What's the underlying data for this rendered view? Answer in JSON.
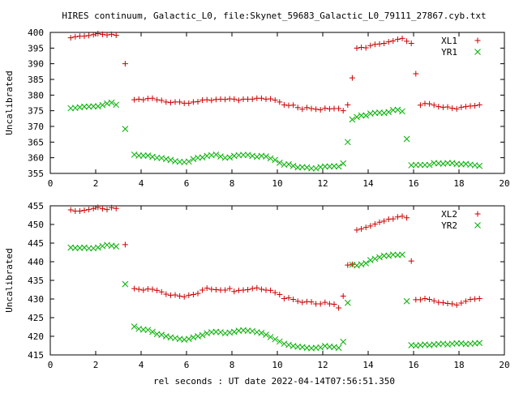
{
  "title": "HIRES continuum, Galactic_L0, file:Skynet_59683_Galactic_L0_79111_27867.cyb.txt",
  "xlabel": "rel seconds : UT date 2022-04-14T07:56:51.350",
  "colors": {
    "series_1": "#cc0000",
    "series_2": "#00b000"
  },
  "chart_data": [
    {
      "type": "scatter",
      "ylabel": "Uncalibrated",
      "xlim": [
        0,
        20
      ],
      "ylim": [
        355,
        400
      ],
      "xticks": [
        0,
        2,
        4,
        6,
        8,
        10,
        12,
        14,
        16,
        18,
        20
      ],
      "yticks": [
        355,
        360,
        365,
        370,
        375,
        380,
        385,
        390,
        395,
        400
      ],
      "legend_position": "top-right",
      "series": [
        {
          "name": "XL1",
          "marker": "plus",
          "x": [
            0.9,
            1.1,
            1.3,
            1.5,
            1.7,
            1.9,
            2.1,
            2.3,
            2.5,
            2.7,
            2.9,
            3.3,
            3.7,
            3.9,
            4.1,
            4.3,
            4.5,
            4.7,
            4.9,
            5.1,
            5.3,
            5.5,
            5.7,
            5.9,
            6.1,
            6.3,
            6.5,
            6.7,
            6.9,
            7.1,
            7.3,
            7.5,
            7.7,
            7.9,
            8.1,
            8.3,
            8.5,
            8.7,
            8.9,
            9.1,
            9.3,
            9.5,
            9.7,
            9.9,
            10.1,
            10.3,
            10.5,
            10.7,
            10.9,
            11.1,
            11.3,
            11.5,
            11.7,
            11.9,
            12.1,
            12.3,
            12.5,
            12.7,
            12.9,
            13.1,
            13.3,
            13.5,
            13.7,
            13.9,
            14.1,
            14.3,
            14.5,
            14.7,
            14.9,
            15.1,
            15.3,
            15.5,
            15.7,
            15.9,
            16.1,
            16.3,
            16.5,
            16.7,
            16.9,
            17.1,
            17.3,
            17.5,
            17.7,
            17.9,
            18.1,
            18.3,
            18.5,
            18.7,
            18.9
          ],
          "y": [
            398.3,
            398.6,
            398.8,
            398.8,
            399.0,
            399.3,
            399.6,
            399.4,
            399.2,
            399.4,
            399.1,
            390.0,
            378.5,
            378.7,
            378.5,
            378.9,
            379.0,
            378.5,
            378.3,
            377.8,
            377.6,
            377.8,
            377.8,
            377.4,
            377.4,
            377.8,
            377.9,
            378.4,
            378.5,
            378.3,
            378.6,
            378.7,
            378.6,
            378.8,
            378.7,
            378.3,
            378.7,
            378.7,
            378.7,
            379.0,
            379.0,
            378.7,
            378.8,
            378.4,
            377.8,
            376.9,
            376.7,
            376.8,
            376.0,
            375.5,
            376.0,
            375.7,
            375.5,
            375.3,
            375.8,
            375.6,
            375.7,
            375.7,
            375.0,
            376.9,
            385.5,
            395.0,
            395.2,
            395.1,
            395.8,
            396.2,
            396.3,
            396.5,
            397.0,
            397.3,
            397.8,
            398.1,
            397.2,
            396.5,
            386.8,
            376.8,
            377.3,
            377.2,
            376.8,
            376.3,
            376.1,
            376.2,
            375.8,
            375.6,
            376.1,
            376.3,
            376.5,
            376.6,
            376.9
          ]
        },
        {
          "name": "YR1",
          "marker": "cross",
          "x": [
            0.9,
            1.1,
            1.3,
            1.5,
            1.7,
            1.9,
            2.1,
            2.3,
            2.5,
            2.7,
            2.9,
            3.3,
            3.7,
            3.9,
            4.1,
            4.3,
            4.5,
            4.7,
            4.9,
            5.1,
            5.3,
            5.5,
            5.7,
            5.9,
            6.1,
            6.3,
            6.5,
            6.7,
            6.9,
            7.1,
            7.3,
            7.5,
            7.7,
            7.9,
            8.1,
            8.3,
            8.5,
            8.7,
            8.9,
            9.1,
            9.3,
            9.5,
            9.7,
            9.9,
            10.1,
            10.3,
            10.5,
            10.7,
            10.9,
            11.1,
            11.3,
            11.5,
            11.7,
            11.9,
            12.1,
            12.3,
            12.5,
            12.7,
            12.9,
            13.1,
            13.3,
            13.5,
            13.7,
            13.9,
            14.1,
            14.3,
            14.5,
            14.7,
            14.9,
            15.1,
            15.3,
            15.5,
            15.7,
            15.9,
            16.1,
            16.3,
            16.5,
            16.7,
            16.9,
            17.1,
            17.3,
            17.5,
            17.7,
            17.9,
            18.1,
            18.3,
            18.5,
            18.7,
            18.9
          ],
          "y": [
            375.8,
            375.9,
            376.1,
            376.3,
            376.3,
            376.4,
            376.4,
            376.8,
            377.3,
            377.6,
            376.9,
            369.2,
            361.0,
            360.7,
            360.7,
            360.7,
            360.3,
            360.0,
            359.9,
            359.6,
            359.3,
            358.9,
            358.7,
            358.6,
            358.8,
            359.6,
            360.0,
            360.1,
            360.6,
            360.8,
            361.0,
            360.4,
            360.0,
            360.1,
            360.6,
            360.8,
            360.9,
            360.9,
            360.6,
            360.3,
            360.6,
            360.4,
            359.8,
            359.3,
            358.4,
            357.8,
            357.9,
            357.4,
            356.9,
            357.0,
            356.9,
            356.6,
            356.6,
            357.0,
            357.2,
            357.2,
            357.3,
            357.2,
            358.2,
            365.0,
            372.2,
            373.0,
            373.5,
            373.5,
            374.1,
            374.3,
            374.4,
            374.3,
            374.6,
            375.2,
            375.3,
            374.8,
            366.0,
            357.6,
            357.7,
            357.7,
            357.7,
            357.7,
            358.3,
            358.2,
            358.1,
            358.3,
            358.3,
            358.0,
            357.9,
            358.0,
            357.8,
            357.6,
            357.4
          ]
        }
      ]
    },
    {
      "type": "scatter",
      "ylabel": "Uncalibrated",
      "xlim": [
        0,
        20
      ],
      "ylim": [
        415,
        455
      ],
      "xticks": [
        0,
        2,
        4,
        6,
        8,
        10,
        12,
        14,
        16,
        18,
        20
      ],
      "yticks": [
        415,
        420,
        425,
        430,
        435,
        440,
        445,
        450,
        455
      ],
      "legend_position": "top-right",
      "series": [
        {
          "name": "XL2",
          "marker": "plus",
          "x": [
            0.9,
            1.1,
            1.3,
            1.5,
            1.7,
            1.9,
            2.1,
            2.3,
            2.5,
            2.7,
            2.9,
            3.3,
            3.7,
            3.9,
            4.1,
            4.3,
            4.5,
            4.7,
            4.9,
            5.1,
            5.3,
            5.5,
            5.7,
            5.9,
            6.1,
            6.3,
            6.5,
            6.7,
            6.9,
            7.1,
            7.3,
            7.5,
            7.7,
            7.9,
            8.1,
            8.3,
            8.5,
            8.7,
            8.9,
            9.1,
            9.3,
            9.5,
            9.7,
            9.9,
            10.1,
            10.3,
            10.5,
            10.7,
            10.9,
            11.1,
            11.3,
            11.5,
            11.7,
            11.9,
            12.1,
            12.3,
            12.5,
            12.7,
            12.9,
            13.1,
            13.3,
            13.5,
            13.7,
            13.9,
            14.1,
            14.3,
            14.5,
            14.7,
            14.9,
            15.1,
            15.3,
            15.5,
            15.7,
            15.9,
            16.1,
            16.3,
            16.5,
            16.7,
            16.9,
            17.1,
            17.3,
            17.5,
            17.7,
            17.9,
            18.1,
            18.3,
            18.5,
            18.7,
            18.9
          ],
          "y": [
            453.9,
            453.6,
            453.6,
            453.8,
            454.0,
            454.3,
            454.6,
            454.2,
            454.0,
            454.5,
            454.3,
            444.6,
            432.8,
            432.6,
            432.4,
            432.7,
            432.6,
            432.3,
            431.9,
            431.3,
            431.0,
            431.1,
            430.8,
            430.6,
            431.0,
            431.2,
            431.5,
            432.4,
            432.9,
            432.6,
            432.5,
            432.4,
            432.4,
            432.8,
            432.0,
            432.3,
            432.4,
            432.5,
            432.8,
            433.0,
            432.6,
            432.4,
            432.3,
            431.7,
            431.2,
            430.1,
            430.3,
            429.9,
            429.4,
            429.1,
            429.3,
            429.2,
            428.7,
            428.7,
            429.1,
            428.7,
            428.6,
            427.6,
            430.8,
            439.1,
            439.3,
            448.5,
            448.8,
            449.2,
            449.6,
            450.1,
            450.6,
            450.9,
            451.4,
            451.5,
            452.0,
            452.2,
            451.8,
            440.2,
            429.8,
            429.8,
            430.1,
            429.9,
            429.5,
            429.1,
            429.0,
            428.8,
            428.7,
            428.4,
            428.9,
            429.4,
            429.9,
            430.0,
            430.1
          ]
        },
        {
          "name": "YR2",
          "marker": "cross",
          "x": [
            0.9,
            1.1,
            1.3,
            1.5,
            1.7,
            1.9,
            2.1,
            2.3,
            2.5,
            2.7,
            2.9,
            3.3,
            3.7,
            3.9,
            4.1,
            4.3,
            4.5,
            4.7,
            4.9,
            5.1,
            5.3,
            5.5,
            5.7,
            5.9,
            6.1,
            6.3,
            6.5,
            6.7,
            6.9,
            7.1,
            7.3,
            7.5,
            7.7,
            7.9,
            8.1,
            8.3,
            8.5,
            8.7,
            8.9,
            9.1,
            9.3,
            9.5,
            9.7,
            9.9,
            10.1,
            10.3,
            10.5,
            10.7,
            10.9,
            11.1,
            11.3,
            11.5,
            11.7,
            11.9,
            12.1,
            12.3,
            12.5,
            12.7,
            12.9,
            13.1,
            13.3,
            13.5,
            13.7,
            13.9,
            14.1,
            14.3,
            14.5,
            14.7,
            14.9,
            15.1,
            15.3,
            15.5,
            15.7,
            15.9,
            16.1,
            16.3,
            16.5,
            16.7,
            16.9,
            17.1,
            17.3,
            17.5,
            17.7,
            17.9,
            18.1,
            18.3,
            18.5,
            18.7,
            18.9
          ],
          "y": [
            443.8,
            443.7,
            443.7,
            443.8,
            443.6,
            443.6,
            443.8,
            444.2,
            444.5,
            444.3,
            444.1,
            434.0,
            422.6,
            422.0,
            421.8,
            421.7,
            421.2,
            420.6,
            420.4,
            420.0,
            419.7,
            419.5,
            419.3,
            419.1,
            419.3,
            419.7,
            420.0,
            420.3,
            420.8,
            421.1,
            421.2,
            421.1,
            420.8,
            421.0,
            421.2,
            421.5,
            421.6,
            421.5,
            421.4,
            421.1,
            420.9,
            420.4,
            419.8,
            419.2,
            418.6,
            418.0,
            417.7,
            417.4,
            417.2,
            417.1,
            416.9,
            416.8,
            416.9,
            417.0,
            417.4,
            417.2,
            417.1,
            416.9,
            418.5,
            429.0,
            439.2,
            439.0,
            439.3,
            439.6,
            440.4,
            440.8,
            441.2,
            441.6,
            441.6,
            441.9,
            441.8,
            441.9,
            429.4,
            417.6,
            417.5,
            417.6,
            417.8,
            417.6,
            417.8,
            417.9,
            418.0,
            417.8,
            418.0,
            418.1,
            418.1,
            417.9,
            418.0,
            418.1,
            418.2
          ]
        }
      ]
    }
  ]
}
